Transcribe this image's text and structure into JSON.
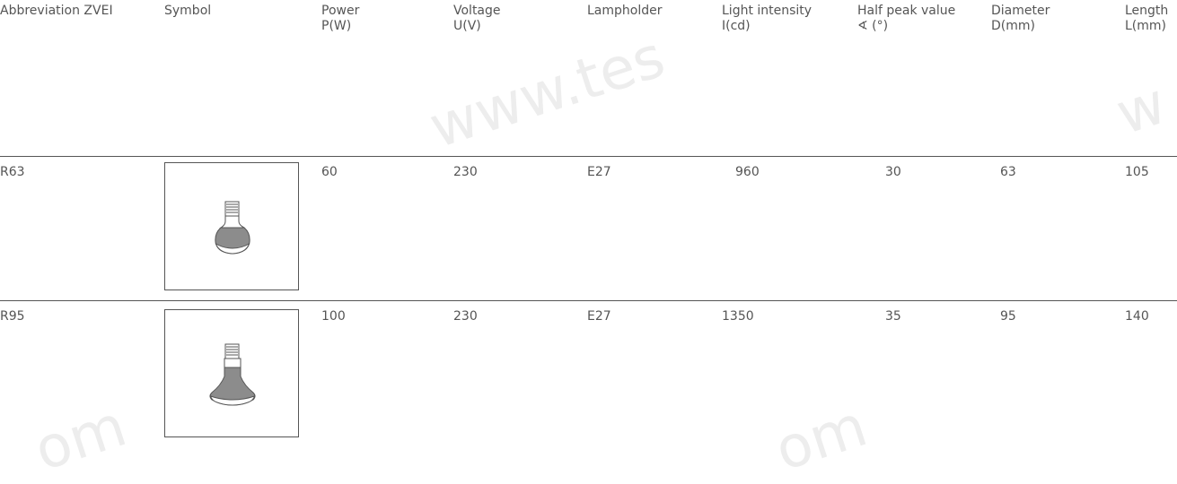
{
  "columns": [
    {
      "key": "abbr",
      "line1": "Abbreviation ZVEI",
      "line2": ""
    },
    {
      "key": "symbol",
      "line1": "Symbol",
      "line2": ""
    },
    {
      "key": "power",
      "line1": "Power",
      "line2": "P(W)"
    },
    {
      "key": "voltage",
      "line1": "Voltage",
      "line2": "U(V)"
    },
    {
      "key": "lampholder",
      "line1": "Lampholder",
      "line2": ""
    },
    {
      "key": "intensity",
      "line1": "Light intensity",
      "line2": "I(cd)"
    },
    {
      "key": "halfpeak",
      "line1": "Half peak value",
      "line2": "∢ (°)"
    },
    {
      "key": "diameter",
      "line1": "Diameter",
      "line2": "D(mm)"
    },
    {
      "key": "length",
      "line1": "Length",
      "line2": "L(mm)"
    }
  ],
  "rows": [
    {
      "abbr": "R63",
      "symbol_icon": "reflector-lamp-r63-icon",
      "power": "60",
      "voltage": "230",
      "lampholder": "E27",
      "intensity": "960",
      "halfpeak": "30",
      "diameter": "63",
      "length": "105"
    },
    {
      "abbr": "R95",
      "symbol_icon": "reflector-lamp-r95-icon",
      "power": "100",
      "voltage": "230",
      "lampholder": "E27",
      "intensity": "1350",
      "halfpeak": "35",
      "diameter": "95",
      "length": "140"
    }
  ],
  "colors": {
    "text": "#555555",
    "rule": "#555555",
    "bulb_fill": "#8c8c8c"
  }
}
